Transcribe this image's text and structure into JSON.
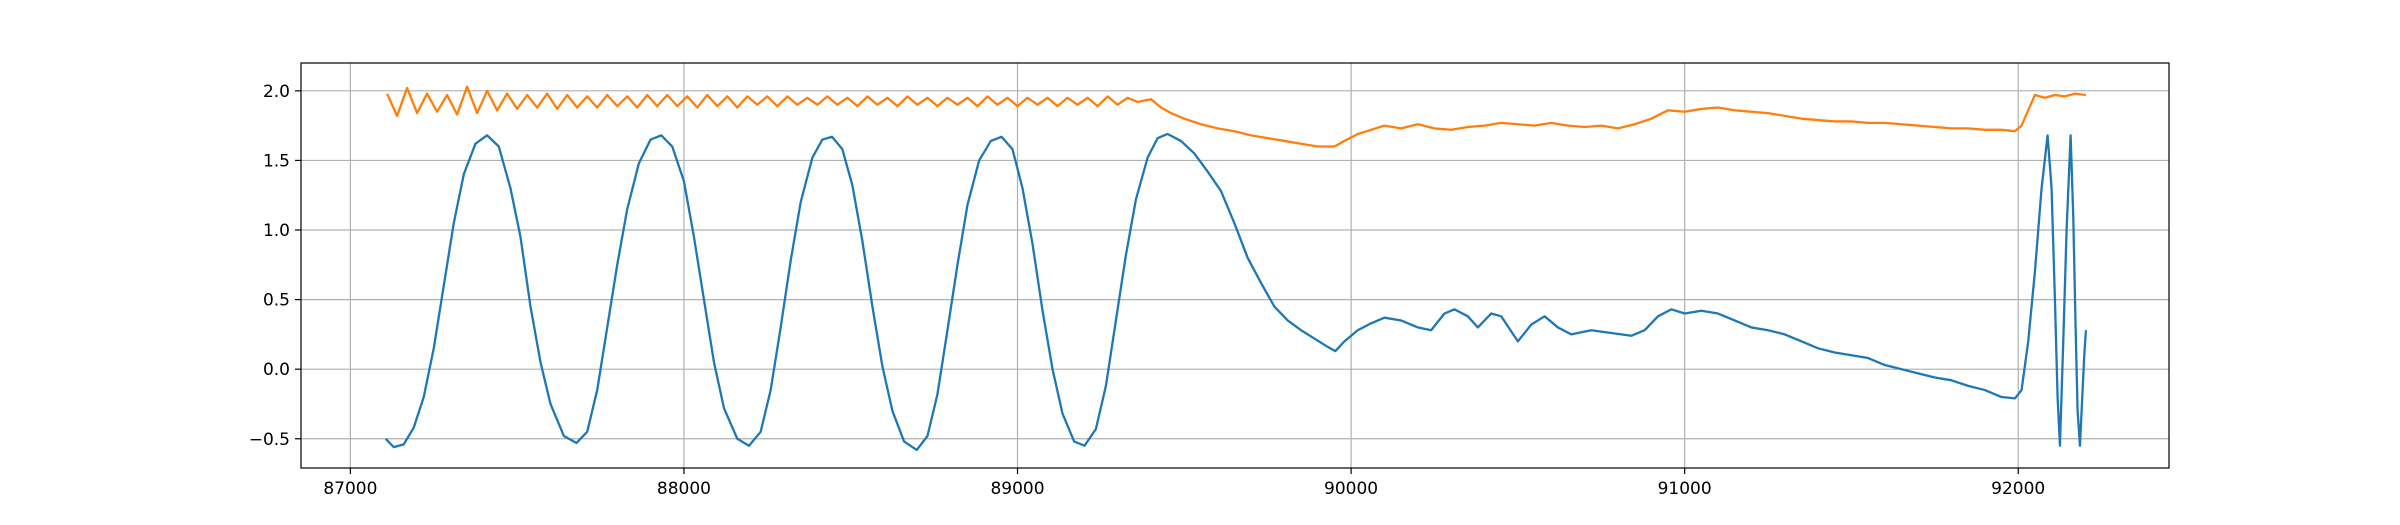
{
  "chart_data": {
    "type": "line",
    "xlim": [
      86852,
      92452
    ],
    "ylim": [
      -0.71,
      2.2
    ],
    "xticks": [
      87000,
      88000,
      89000,
      90000,
      91000,
      92000
    ],
    "yticks": [
      {
        "value": -0.5,
        "label": "−0.5"
      },
      {
        "value": 0,
        "label": "0.0"
      },
      {
        "value": 0.5,
        "label": "0.5"
      },
      {
        "value": 1,
        "label": "1.0"
      },
      {
        "value": 1.5,
        "label": "1.5"
      },
      {
        "value": 2,
        "label": "2.0"
      }
    ],
    "grid": true,
    "series": [
      {
        "color": "#1f77b4",
        "x": [
          87106,
          87130,
          87160,
          87190,
          87220,
          87250,
          87280,
          87310,
          87340,
          87375,
          87410,
          87445,
          87480,
          87510,
          87540,
          87570,
          87600,
          87640,
          87678,
          87710,
          87740,
          87770,
          87800,
          87830,
          87865,
          87900,
          87932,
          87965,
          88000,
          88030,
          88060,
          88090,
          88120,
          88160,
          88195,
          88230,
          88260,
          88290,
          88320,
          88350,
          88385,
          88415,
          88444,
          88475,
          88505,
          88535,
          88565,
          88595,
          88625,
          88660,
          88698,
          88730,
          88760,
          88790,
          88820,
          88850,
          88885,
          88920,
          88952,
          88985,
          89015,
          89045,
          89075,
          89105,
          89135,
          89170,
          89201,
          89235,
          89265,
          89295,
          89325,
          89355,
          89390,
          89420,
          89450,
          89490,
          89530,
          89570,
          89610,
          89650,
          89690,
          89730,
          89770,
          89810,
          89850,
          89890,
          89930,
          89953,
          89980,
          90020,
          90060,
          90100,
          90150,
          90200,
          90240,
          90280,
          90310,
          90350,
          90380,
          90420,
          90450,
          90500,
          90540,
          90580,
          90620,
          90660,
          90720,
          90780,
          90840,
          90880,
          90920,
          90960,
          91000,
          91050,
          91100,
          91150,
          91200,
          91250,
          91300,
          91350,
          91400,
          91450,
          91500,
          91550,
          91600,
          91650,
          91700,
          91750,
          91800,
          91850,
          91900,
          91950,
          91990,
          92010,
          92030,
          92050,
          92070,
          92088,
          92100,
          92110,
          92118,
          92125,
          92135,
          92145,
          92157,
          92165,
          92172,
          92178,
          92185,
          92192,
          92198,
          92203
        ],
        "values": [
          -0.5,
          -0.56,
          -0.54,
          -0.42,
          -0.2,
          0.15,
          0.6,
          1.05,
          1.4,
          1.62,
          1.68,
          1.6,
          1.3,
          0.95,
          0.45,
          0.05,
          -0.25,
          -0.48,
          -0.53,
          -0.45,
          -0.15,
          0.3,
          0.75,
          1.15,
          1.48,
          1.65,
          1.68,
          1.6,
          1.35,
          0.95,
          0.5,
          0.05,
          -0.28,
          -0.5,
          -0.55,
          -0.45,
          -0.15,
          0.3,
          0.78,
          1.2,
          1.52,
          1.65,
          1.67,
          1.58,
          1.32,
          0.92,
          0.45,
          0.02,
          -0.3,
          -0.52,
          -0.58,
          -0.48,
          -0.18,
          0.28,
          0.75,
          1.18,
          1.5,
          1.64,
          1.67,
          1.58,
          1.3,
          0.9,
          0.42,
          0,
          -0.32,
          -0.52,
          -0.55,
          -0.43,
          -0.12,
          0.35,
          0.82,
          1.22,
          1.52,
          1.66,
          1.69,
          1.64,
          1.55,
          1.42,
          1.28,
          1.05,
          0.8,
          0.62,
          0.45,
          0.35,
          0.28,
          0.22,
          0.16,
          0.13,
          0.2,
          0.28,
          0.33,
          0.37,
          0.35,
          0.3,
          0.28,
          0.4,
          0.43,
          0.38,
          0.3,
          0.4,
          0.38,
          0.2,
          0.32,
          0.38,
          0.3,
          0.25,
          0.28,
          0.26,
          0.24,
          0.28,
          0.38,
          0.43,
          0.4,
          0.42,
          0.4,
          0.35,
          0.3,
          0.28,
          0.25,
          0.2,
          0.15,
          0.12,
          0.1,
          0.08,
          0.03,
          0,
          -0.03,
          -0.06,
          -0.08,
          -0.12,
          -0.15,
          -0.2,
          -0.21,
          -0.15,
          0.2,
          0.7,
          1.3,
          1.68,
          1.3,
          0.5,
          -0.2,
          -0.55,
          0.2,
          1,
          1.68,
          1.1,
          0.3,
          -0.3,
          -0.55,
          -0.2,
          0.1,
          0.28
        ]
      },
      {
        "color": "#ff7f0e",
        "x": [
          87110,
          87140,
          87170,
          87200,
          87230,
          87260,
          87290,
          87320,
          87350,
          87380,
          87410,
          87440,
          87470,
          87500,
          87530,
          87560,
          87590,
          87620,
          87650,
          87680,
          87710,
          87740,
          87770,
          87800,
          87830,
          87860,
          87890,
          87920,
          87950,
          87980,
          88010,
          88040,
          88070,
          88100,
          88130,
          88160,
          88190,
          88220,
          88250,
          88280,
          88310,
          88340,
          88370,
          88400,
          88430,
          88460,
          88490,
          88520,
          88550,
          88580,
          88610,
          88640,
          88670,
          88700,
          88730,
          88760,
          88790,
          88820,
          88850,
          88880,
          88910,
          88940,
          88970,
          89000,
          89030,
          89060,
          89090,
          89120,
          89150,
          89180,
          89210,
          89240,
          89270,
          89300,
          89330,
          89360,
          89400,
          89430,
          89460,
          89500,
          89550,
          89600,
          89650,
          89700,
          89750,
          89800,
          89850,
          89900,
          89950,
          89980,
          90020,
          90060,
          90100,
          90150,
          90200,
          90250,
          90300,
          90350,
          90400,
          90450,
          90500,
          90550,
          90600,
          90650,
          90700,
          90750,
          90800,
          90850,
          90900,
          90950,
          91000,
          91050,
          91100,
          91150,
          91200,
          91250,
          91300,
          91350,
          91400,
          91450,
          91500,
          91550,
          91600,
          91650,
          91700,
          91750,
          91800,
          91850,
          91900,
          91950,
          91990,
          92010,
          92030,
          92050,
          92080,
          92110,
          92140,
          92170,
          92203
        ],
        "values": [
          1.98,
          1.82,
          2.02,
          1.84,
          1.98,
          1.85,
          1.97,
          1.83,
          2.03,
          1.84,
          2,
          1.86,
          1.98,
          1.87,
          1.97,
          1.88,
          1.98,
          1.87,
          1.97,
          1.88,
          1.96,
          1.88,
          1.97,
          1.89,
          1.96,
          1.88,
          1.97,
          1.89,
          1.97,
          1.89,
          1.96,
          1.88,
          1.97,
          1.89,
          1.96,
          1.88,
          1.96,
          1.9,
          1.96,
          1.89,
          1.96,
          1.9,
          1.95,
          1.9,
          1.96,
          1.9,
          1.95,
          1.89,
          1.96,
          1.9,
          1.95,
          1.89,
          1.96,
          1.9,
          1.95,
          1.89,
          1.95,
          1.9,
          1.95,
          1.89,
          1.96,
          1.9,
          1.95,
          1.89,
          1.95,
          1.9,
          1.95,
          1.89,
          1.95,
          1.9,
          1.95,
          1.89,
          1.96,
          1.9,
          1.95,
          1.92,
          1.94,
          1.88,
          1.84,
          1.8,
          1.76,
          1.73,
          1.71,
          1.68,
          1.66,
          1.64,
          1.62,
          1.6,
          1.6,
          1.64,
          1.69,
          1.72,
          1.75,
          1.73,
          1.76,
          1.73,
          1.72,
          1.74,
          1.75,
          1.77,
          1.76,
          1.75,
          1.77,
          1.75,
          1.74,
          1.75,
          1.73,
          1.76,
          1.8,
          1.86,
          1.85,
          1.87,
          1.88,
          1.86,
          1.85,
          1.84,
          1.82,
          1.8,
          1.79,
          1.78,
          1.78,
          1.77,
          1.77,
          1.76,
          1.75,
          1.74,
          1.73,
          1.73,
          1.72,
          1.72,
          1.71,
          1.75,
          1.86,
          1.97,
          1.95,
          1.97,
          1.96,
          1.98,
          1.97
        ]
      }
    ]
  }
}
